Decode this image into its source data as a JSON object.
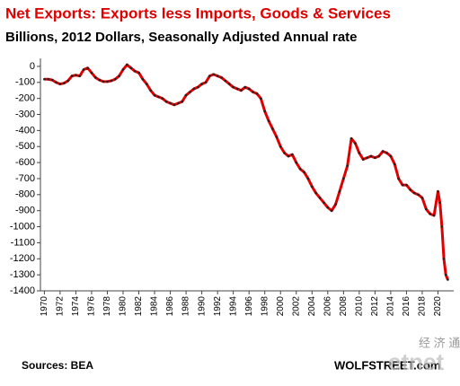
{
  "chart_data": {
    "type": "line",
    "title": "Net Exports:  Exports  less  Imports,  Goods & Services",
    "subtitle": "Billions, 2012 Dollars, Seasonally Adjusted Annual rate",
    "source": "Sources: BEA",
    "credit": "WOLFSTREET.com",
    "watermark": [
      "经 济 通",
      "etnet"
    ],
    "x": [
      1970,
      1970.5,
      1971,
      1971.5,
      1972,
      1972.5,
      1973,
      1973.5,
      1974,
      1974.5,
      1975,
      1975.5,
      1976,
      1976.5,
      1977,
      1977.5,
      1978,
      1978.5,
      1979,
      1979.5,
      1980,
      1980.5,
      1981,
      1981.5,
      1982,
      1982.5,
      1983,
      1983.5,
      1984,
      1984.5,
      1985,
      1985.5,
      1986,
      1986.5,
      1987,
      1987.5,
      1988,
      1988.5,
      1989,
      1989.5,
      1990,
      1990.5,
      1991,
      1991.5,
      1992,
      1992.5,
      1993,
      1993.5,
      1994,
      1994.5,
      1995,
      1995.5,
      1996,
      1996.5,
      1997,
      1997.5,
      1998,
      1998.5,
      1999,
      1999.5,
      2000,
      2000.5,
      2001,
      2001.5,
      2002,
      2002.5,
      2003,
      2003.5,
      2004,
      2004.5,
      2005,
      2005.5,
      2006,
      2006.5,
      2007,
      2007.5,
      2008,
      2008.5,
      2009,
      2009.5,
      2010,
      2010.5,
      2011,
      2011.5,
      2012,
      2012.5,
      2013,
      2013.5,
      2014,
      2014.5,
      2015,
      2015.5,
      2016,
      2016.5,
      2017,
      2017.5,
      2018,
      2018.5,
      2019,
      2019.5,
      2020,
      2020.25,
      2020.5,
      2020.75,
      2021,
      2021.25
    ],
    "series": [
      {
        "name": "Net Exports",
        "color": "#e00000",
        "marker_color": "#222222",
        "values": [
          -80,
          -80,
          -85,
          -100,
          -110,
          -105,
          -90,
          -60,
          -55,
          -60,
          -20,
          -10,
          -40,
          -70,
          -85,
          -95,
          -95,
          -90,
          -80,
          -60,
          -20,
          10,
          -10,
          -30,
          -40,
          -80,
          -110,
          -150,
          -180,
          -190,
          -200,
          -220,
          -230,
          -240,
          -230,
          -220,
          -180,
          -160,
          -140,
          -130,
          -110,
          -100,
          -60,
          -50,
          -60,
          -70,
          -90,
          -110,
          -130,
          -140,
          -150,
          -130,
          -140,
          -160,
          -170,
          -200,
          -280,
          -340,
          -390,
          -440,
          -500,
          -540,
          -560,
          -550,
          -600,
          -640,
          -660,
          -700,
          -750,
          -790,
          -820,
          -850,
          -880,
          -900,
          -860,
          -780,
          -700,
          -620,
          -450,
          -480,
          -540,
          -580,
          -570,
          -560,
          -570,
          -560,
          -530,
          -540,
          -560,
          -610,
          -700,
          -740,
          -740,
          -770,
          -790,
          -800,
          -820,
          -890,
          -920,
          -930,
          -780,
          -850,
          -1000,
          -1200,
          -1300,
          -1330
        ]
      }
    ],
    "xlim": [
      1969.5,
      2022
    ],
    "xticks": [
      1970,
      1972,
      1974,
      1976,
      1978,
      1980,
      1982,
      1984,
      1986,
      1988,
      1990,
      1992,
      1994,
      1996,
      1998,
      2000,
      2002,
      2004,
      2006,
      2008,
      2010,
      2012,
      2014,
      2016,
      2018,
      2020
    ],
    "ylim": [
      -1400,
      50
    ],
    "yticks": [
      0,
      -100,
      -200,
      -300,
      -400,
      -500,
      -600,
      -700,
      -800,
      -900,
      -1000,
      -1100,
      -1200,
      -1300,
      -1400
    ],
    "grid": false
  }
}
